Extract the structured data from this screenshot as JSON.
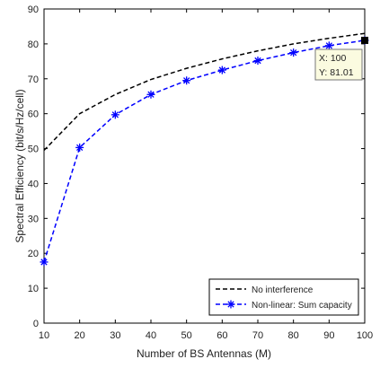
{
  "chart_data": {
    "type": "line",
    "xlabel": "Number of BS Antennas (M)",
    "ylabel": "Spectral Efficiency (bit/s/Hz/cell)",
    "xlim": [
      10,
      100
    ],
    "ylim": [
      0,
      90
    ],
    "xticks": [
      10,
      20,
      30,
      40,
      50,
      60,
      70,
      80,
      90,
      100
    ],
    "yticks": [
      0,
      10,
      20,
      30,
      40,
      50,
      60,
      70,
      80,
      90
    ],
    "grid": false,
    "legend_position": "bottom-right",
    "series": [
      {
        "name": "No interference",
        "color": "#000000",
        "line_style": "dashed",
        "marker": "none",
        "x": [
          10,
          20,
          30,
          40,
          50,
          60,
          70,
          80,
          90,
          100
        ],
        "y": [
          49.5,
          60.0,
          65.5,
          69.8,
          73.0,
          75.7,
          78.0,
          80.0,
          81.6,
          83.0
        ]
      },
      {
        "name": "Non-linear: Sum capacity",
        "color": "#0000ff",
        "line_style": "dashed",
        "marker": "asterisk",
        "x": [
          10,
          20,
          30,
          40,
          50,
          60,
          70,
          80,
          90,
          100
        ],
        "y": [
          17.5,
          50.3,
          59.7,
          65.5,
          69.5,
          72.5,
          75.2,
          77.5,
          79.5,
          81.01
        ]
      }
    ],
    "datatip": {
      "x_label": "X: 100",
      "y_label": "Y: 81.01",
      "x": 100,
      "y": 81.01
    }
  }
}
